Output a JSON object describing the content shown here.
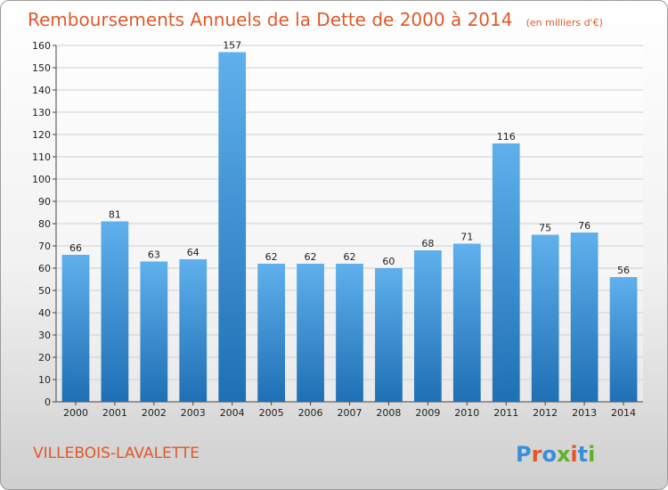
{
  "title": "Remboursements Annuels de la Dette de 2000 à 2014",
  "unit": "(en milliers d'€)",
  "location": "VILLEBOIS-LAVALETTE",
  "logo": "Proxiti",
  "colors": {
    "bar_light": "#5fb0ec",
    "bar_dark": "#1f6fb5",
    "title": "#e0592a",
    "logo_letters": [
      "#3a8fd6",
      "#e0592a",
      "#3a8fd6",
      "#5fb02a",
      "#e0592a",
      "#3a8fd6",
      "#5fb02a"
    ]
  },
  "chart_data": {
    "type": "bar",
    "title": "Remboursements Annuels de la Dette de 2000 à 2014",
    "categories": [
      "2000",
      "2001",
      "2002",
      "2003",
      "2004",
      "2005",
      "2006",
      "2007",
      "2008",
      "2009",
      "2010",
      "2011",
      "2012",
      "2013",
      "2014"
    ],
    "values": [
      66,
      81,
      63,
      64,
      157,
      62,
      62,
      62,
      60,
      68,
      71,
      116,
      75,
      76,
      56
    ],
    "ylim": [
      0,
      160
    ],
    "yticks": [
      0,
      10,
      20,
      30,
      40,
      50,
      60,
      70,
      80,
      90,
      100,
      110,
      120,
      130,
      140,
      150,
      160
    ],
    "grid": true,
    "xlabel": "",
    "ylabel": ""
  }
}
